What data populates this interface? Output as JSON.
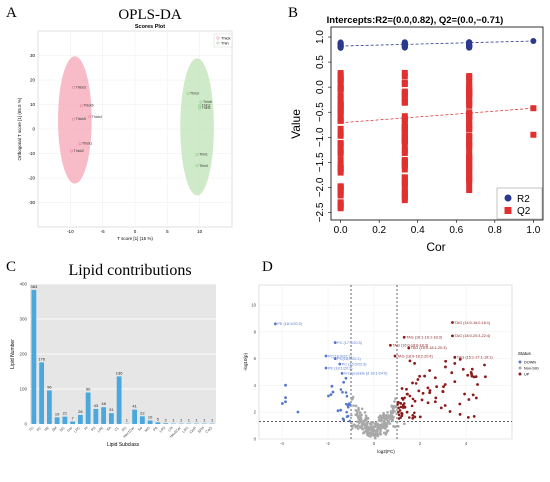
{
  "colors": {
    "thick": "#e8708a",
    "thin": "#7cc27a",
    "thick_fill": "#f4a6b6",
    "thin_fill": "#bfe3b6",
    "r2": "#2b3a8f",
    "q2": "#e03030",
    "bar": "#4aa8dc",
    "grid_bg": "#e6e6e6",
    "down": "#5577cc",
    "nonsig": "#a8a8a8",
    "up": "#8b1a1a"
  },
  "panels": {
    "a": "A",
    "b": "B",
    "c": "C",
    "d": "D"
  },
  "chart_data": [
    {
      "type": "scatter",
      "title": "OPLS-DA",
      "subtitle": "Scores Plot",
      "xlabel": "T score [1] (15 %)",
      "ylabel": "Orthogonal T score [1] (65.5 %)",
      "xlim": [
        -15,
        15
      ],
      "ylim": [
        -40,
        40
      ],
      "xticks": [
        -10,
        -5,
        0,
        5,
        10
      ],
      "yticks": [
        -30,
        -20,
        -10,
        0,
        10,
        20,
        30
      ],
      "legend": [
        "Thick",
        "Thin"
      ],
      "legend_position": "top-right",
      "series": [
        {
          "name": "Thick",
          "points": [
            {
              "x": -9.5,
              "y": 17,
              "label": "Thick3"
            },
            {
              "x": -8.3,
              "y": 9.5,
              "label": "Thick6"
            },
            {
              "x": -7.0,
              "y": 5,
              "label": "Thick4"
            },
            {
              "x": -9.5,
              "y": 4,
              "label": "Thick5"
            },
            {
              "x": -8.5,
              "y": -6,
              "label": "Thick1"
            },
            {
              "x": -9.8,
              "y": -9,
              "label": "Thick2"
            }
          ],
          "ellipse": {
            "cx": -9.3,
            "cy": 3.7,
            "rx": 2.6,
            "ry": 26
          }
        },
        {
          "name": "Thin",
          "points": [
            {
              "x": 8.2,
              "y": 14.5,
              "label": "Thin3"
            },
            {
              "x": 10.2,
              "y": 11,
              "label": "Thin6"
            },
            {
              "x": 10.0,
              "y": 9.5,
              "label": "Thin2"
            },
            {
              "x": 10.0,
              "y": 8.5,
              "label": "Thin5"
            },
            {
              "x": 9.6,
              "y": -10.5,
              "label": "Thin1"
            },
            {
              "x": 9.6,
              "y": -15,
              "label": "Thin4"
            }
          ],
          "ellipse": {
            "cx": 9.6,
            "cy": 0.9,
            "rx": 2.6,
            "ry": 28
          }
        }
      ]
    },
    {
      "type": "scatter",
      "title": "Intercepts:R2=(0.0,0.82), Q2=(0.0,−0.71)",
      "xlabel": "Cor",
      "ylabel": "Value",
      "xlim": [
        -0.05,
        1.05
      ],
      "ylim": [
        -2.65,
        1.2
      ],
      "xticks": [
        0.0,
        0.2,
        0.4,
        0.6,
        0.8,
        1.0
      ],
      "xtick_labels": [
        "0.0",
        "0.2",
        "0.4",
        "0.6",
        "0.8",
        "1.0"
      ],
      "yticks": [
        1.0,
        0.5,
        0.0,
        -0.5,
        -1.0,
        -1.5,
        -2.0,
        -2.5
      ],
      "ytick_labels": [
        "1.0",
        "0.5",
        "0.0",
        "−0.5",
        "−1.0",
        "−1.5",
        "−2.0",
        "−2.5"
      ],
      "legend": [
        "R2",
        "Q2"
      ],
      "legend_position": "bottom-right",
      "r2_x": [
        0.0,
        0.333,
        0.667,
        1.0
      ],
      "r2_line": {
        "x": [
          0,
          1
        ],
        "y": [
          0.82,
          0.92
        ]
      },
      "q2_line": {
        "x": [
          0,
          1
        ],
        "y": [
          -0.71,
          -0.42
        ]
      },
      "q2_columns": [
        {
          "x": 0.0,
          "ymin": -2.5,
          "ymax": 0.3
        },
        {
          "x": 0.333,
          "ymin": -2.3,
          "ymax": 0.33
        },
        {
          "x": 0.667,
          "ymin": -2.1,
          "ymax": 0.35
        },
        {
          "x": 1.0,
          "ymin": -0.42,
          "ymax": -0.42
        }
      ],
      "q2_extra_x1": -0.95
    },
    {
      "type": "bar",
      "title": "Lipid contributions",
      "xlabel": "Lipid Subclass",
      "ylabel": "Lipid Number",
      "ylim": [
        0,
        400
      ],
      "yticks": [
        0,
        100,
        200,
        300,
        400
      ],
      "categories": [
        "TG",
        "PC",
        "PE",
        "SM",
        "DG",
        "Cer",
        "LPC",
        "PI",
        "PS",
        "LPE",
        "FA",
        "CL",
        "PG",
        "Hex1Cer",
        "So",
        "MG",
        "PA",
        "LPS",
        "LPI",
        "Hex2Cer",
        "LPG",
        "CerP",
        "SPH",
        "CoQ"
      ],
      "values": [
        383,
        176,
        96,
        19,
        21,
        7,
        26,
        90,
        43,
        48,
        31,
        136,
        1,
        41,
        22,
        10,
        5,
        2,
        1,
        1,
        1,
        1,
        1,
        1
      ]
    },
    {
      "type": "scatter",
      "xlabel": "log2(FC)",
      "ylabel": "-log10(p)",
      "xlim": [
        -5,
        6
      ],
      "ylim": [
        0,
        11.5
      ],
      "xticks": [
        -4,
        -2,
        0,
        2,
        4
      ],
      "yticks": [
        0,
        2,
        4,
        6,
        8,
        10
      ],
      "legend_title": "Status",
      "legend": [
        "DOWN",
        "Non-SIG",
        "UP"
      ],
      "legend_position": "right",
      "labels_down": [
        {
          "x": -4.2,
          "y": 8.6,
          "text": "PE (18:1/20:3)"
        },
        {
          "x": -1.6,
          "y": 7.2,
          "text": "PC (17:1/20:3)"
        },
        {
          "x": -2.0,
          "y": 6.2,
          "text": "PC(18:0/22:1)"
        },
        {
          "x": -1.6,
          "y": 6.0,
          "text": "PC(18:0/22:1)"
        },
        {
          "x": -2.0,
          "y": 5.3,
          "text": "PE (18:1/20:3)"
        },
        {
          "x": -1.4,
          "y": 5.6,
          "text": "PC (16:0/22:3)"
        },
        {
          "x": -1.3,
          "y": 4.9,
          "text": "N-Glycoside (d 18:1/24:0)"
        }
      ],
      "labels_up": [
        {
          "x": 3.5,
          "y": 8.7,
          "text": "TAG (14:0-16:0-16:1)"
        },
        {
          "x": 1.4,
          "y": 7.6,
          "text": "TAG (16:1-16:1-18:3)"
        },
        {
          "x": 3.5,
          "y": 7.7,
          "text": "TAG (18:0-20:3-22:4)"
        },
        {
          "x": 0.8,
          "y": 7.0,
          "text": "TAG (16:0-18:0-18:3)"
        },
        {
          "x": 1.6,
          "y": 6.8,
          "text": "TAG (18:0-18:1-20:3)"
        },
        {
          "x": 1.0,
          "y": 6.2,
          "text": "TAG (18:0-18:2-20:4)"
        },
        {
          "x": 3.6,
          "y": 6.1,
          "text": "TAG (15:1-17:1-19:1)"
        }
      ]
    }
  ]
}
